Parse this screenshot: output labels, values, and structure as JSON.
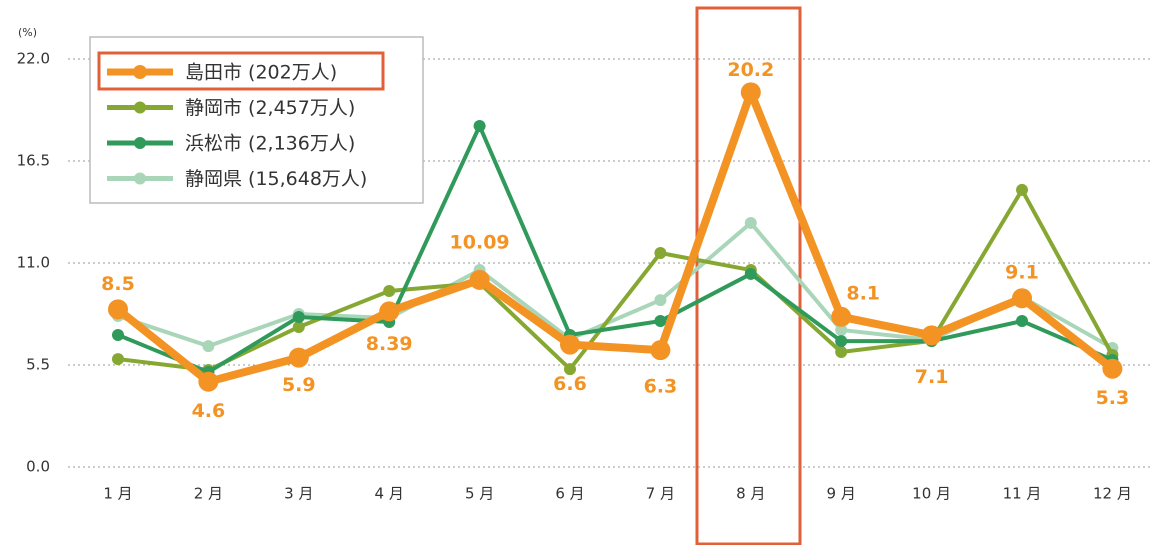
{
  "chart_data": {
    "type": "line",
    "unit": "(%)",
    "categories": [
      "1 月",
      "2 月",
      "3 月",
      "4 月",
      "5 月",
      "6 月",
      "7 月",
      "8 月",
      "9 月",
      "10 月",
      "11 月",
      "12 月"
    ],
    "ylim": [
      0,
      22
    ],
    "yticks": [
      {
        "value": 0,
        "label": "0.0"
      },
      5.5,
      {
        "value": 11,
        "label": "11.0"
      },
      16.5,
      {
        "value": 22,
        "label": "22.0"
      }
    ],
    "grid": true,
    "legend": "upper left",
    "series": [
      {
        "name": "島田市 (202万人)",
        "color": "#f39323",
        "values": [
          8.5,
          4.6,
          5.9,
          8.39,
          10.09,
          6.6,
          6.3,
          20.2,
          8.1,
          7.1,
          9.1,
          5.3
        ]
      },
      {
        "name": "静岡市 (2,457万人)",
        "color": "#86a832",
        "values": [
          5.82,
          5.23,
          7.55,
          9.49,
          9.92,
          5.28,
          11.54,
          10.62,
          6.2,
          6.8,
          14.94,
          6.04
        ]
      },
      {
        "name": "浜松市 (2,136万人)",
        "color": "#2f9a5a",
        "values": [
          7.12,
          5.12,
          8.09,
          7.82,
          18.39,
          7.12,
          7.87,
          10.41,
          6.79,
          6.79,
          7.87,
          5.77
        ]
      },
      {
        "name": "静岡県 (15,648万人)",
        "color": "#a9d6b9",
        "values": [
          8.14,
          6.52,
          8.25,
          8.03,
          10.62,
          6.9,
          9.0,
          13.16,
          7.39,
          6.85,
          9.17,
          6.42
        ]
      }
    ]
  }
}
